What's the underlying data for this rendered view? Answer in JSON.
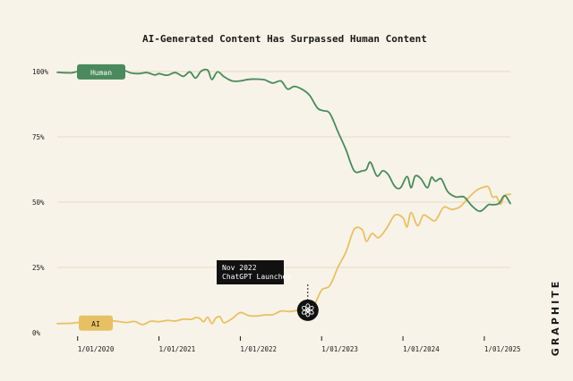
{
  "chart_data": {
    "type": "line",
    "title": "AI-Generated Content Has Surpassed Human Content",
    "xlabel": "",
    "ylabel": "",
    "y_ticks": [
      "0%",
      "25%",
      "50%",
      "75%",
      "100%"
    ],
    "y_tick_values": [
      0,
      25,
      50,
      75,
      100
    ],
    "ylim": [
      0,
      100
    ],
    "x_ticks": [
      "1/01/2020",
      "1/01/2021",
      "1/01/2022",
      "1/01/2023",
      "1/01/2024",
      "1/01/2025"
    ],
    "x_tick_values": [
      2020.0,
      2021.0,
      2022.0,
      2023.0,
      2024.0,
      2025.0
    ],
    "xlim": [
      2019.75,
      2025.32
    ],
    "grid": "horizontal",
    "series": [
      {
        "name": "Human",
        "color": "#4a8a5c",
        "x": [
          2019.75,
          2019.92,
          2020.0,
          2020.1,
          2020.2,
          2020.25,
          2020.4,
          2020.5,
          2020.58,
          2020.65,
          2020.75,
          2020.85,
          2020.95,
          2021.0,
          2021.1,
          2021.2,
          2021.3,
          2021.38,
          2021.45,
          2021.52,
          2021.6,
          2021.65,
          2021.72,
          2021.8,
          2021.9,
          2022.0,
          2022.1,
          2022.2,
          2022.3,
          2022.4,
          2022.5,
          2022.58,
          2022.66,
          2022.75,
          2022.85,
          2022.95,
          2023.02,
          2023.1,
          2023.2,
          2023.3,
          2023.4,
          2023.5,
          2023.55,
          2023.6,
          2023.68,
          2023.75,
          2023.82,
          2023.9,
          2023.97,
          2024.05,
          2024.1,
          2024.15,
          2024.22,
          2024.3,
          2024.35,
          2024.4,
          2024.47,
          2024.55,
          2024.65,
          2024.75,
          2024.85,
          2024.95,
          2025.05,
          2025.1,
          2025.18,
          2025.25,
          2025.32
        ],
        "values": [
          99.7,
          99.5,
          100,
          99.8,
          99.5,
          99.6,
          99.2,
          99.4,
          100.3,
          99.5,
          99.2,
          99.6,
          98.7,
          99.2,
          98.6,
          99.6,
          98.2,
          99.9,
          97.5,
          100.2,
          100.5,
          97,
          99.9,
          98,
          96.4,
          96.4,
          97,
          97.1,
          96.8,
          95.6,
          96.4,
          93.3,
          94.3,
          93.4,
          91,
          86,
          85,
          84,
          77,
          70,
          62,
          62,
          62.5,
          65.3,
          60,
          62,
          60.5,
          56,
          55.5,
          59.8,
          55.5,
          60,
          59,
          55.5,
          59.5,
          58,
          58.9,
          54,
          52,
          52,
          48.5,
          46.5,
          49,
          49,
          49.5,
          52.5,
          49.5
        ]
      },
      {
        "name": "AI",
        "color": "#e8c064",
        "x": [
          2019.75,
          2019.92,
          2020.0,
          2020.1,
          2020.2,
          2020.3,
          2020.4,
          2020.5,
          2020.6,
          2020.7,
          2020.8,
          2020.9,
          2021.0,
          2021.1,
          2021.2,
          2021.3,
          2021.4,
          2021.45,
          2021.5,
          2021.55,
          2021.6,
          2021.65,
          2021.7,
          2021.75,
          2021.8,
          2021.9,
          2022.0,
          2022.1,
          2022.2,
          2022.3,
          2022.4,
          2022.5,
          2022.6,
          2022.7,
          2022.8,
          2022.9,
          2023.0,
          2023.1,
          2023.2,
          2023.3,
          2023.4,
          2023.5,
          2023.55,
          2023.62,
          2023.7,
          2023.8,
          2023.9,
          2024.0,
          2024.05,
          2024.1,
          2024.18,
          2024.25,
          2024.32,
          2024.4,
          2024.5,
          2024.6,
          2024.7,
          2024.8,
          2024.9,
          2024.97,
          2025.05,
          2025.1,
          2025.15,
          2025.2,
          2025.25,
          2025.32
        ],
        "values": [
          3.5,
          3.6,
          3.9,
          3.5,
          4.5,
          4.2,
          4.6,
          4.3,
          3.9,
          4.3,
          3.1,
          4.4,
          4.2,
          4.7,
          4.5,
          5.2,
          5.1,
          5.8,
          5.5,
          4.2,
          5.9,
          3.5,
          5.6,
          6.1,
          3.8,
          5.4,
          7.7,
          6.6,
          6.4,
          6.8,
          6.9,
          8.3,
          8.1,
          8.5,
          8.7,
          10.2,
          16.3,
          18,
          25,
          31,
          39.6,
          39.4,
          35,
          38,
          36.4,
          40,
          45,
          44,
          40.5,
          46,
          41,
          45,
          44,
          43,
          48,
          47.2,
          48.2,
          51.5,
          54.4,
          55.5,
          55.8,
          52,
          52.1,
          49.2,
          52.5,
          53
        ]
      }
    ],
    "annotation": {
      "line1": "Nov 2022",
      "line2": "ChatGPT Launches",
      "x": 2022.83,
      "y": 8.6
    },
    "brand": "GRAPHITE"
  }
}
